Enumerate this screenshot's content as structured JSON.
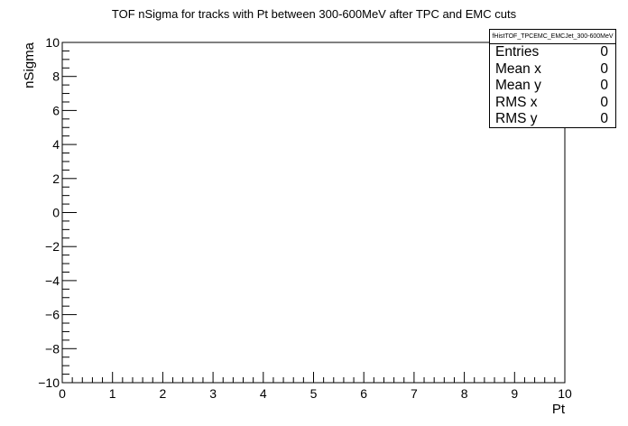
{
  "chart_data": {
    "type": "scatter",
    "title": "TOF nSigma for tracks with Pt between 300-600MeV after TPC and EMC cuts",
    "xlabel": "Pt",
    "ylabel": "nSigma",
    "xlim": [
      0,
      10
    ],
    "ylim": [
      -10,
      10
    ],
    "x_ticks": [
      "0",
      "1",
      "2",
      "3",
      "4",
      "5",
      "6",
      "7",
      "8",
      "9",
      "10"
    ],
    "y_ticks": [
      "−10",
      "−8",
      "−6",
      "−4",
      "−2",
      "0",
      "2",
      "4",
      "6",
      "8",
      "10"
    ],
    "points": [],
    "grid": false,
    "stats_box": {
      "name": "fHistTOF_TPCEMC_EMCJet_300-600MeV",
      "rows": [
        {
          "label": "Entries",
          "value": "0"
        },
        {
          "label": "Mean x",
          "value": "0"
        },
        {
          "label": "Mean y",
          "value": "0"
        },
        {
          "label": "RMS x",
          "value": "0"
        },
        {
          "label": "RMS y",
          "value": "0"
        }
      ]
    }
  }
}
